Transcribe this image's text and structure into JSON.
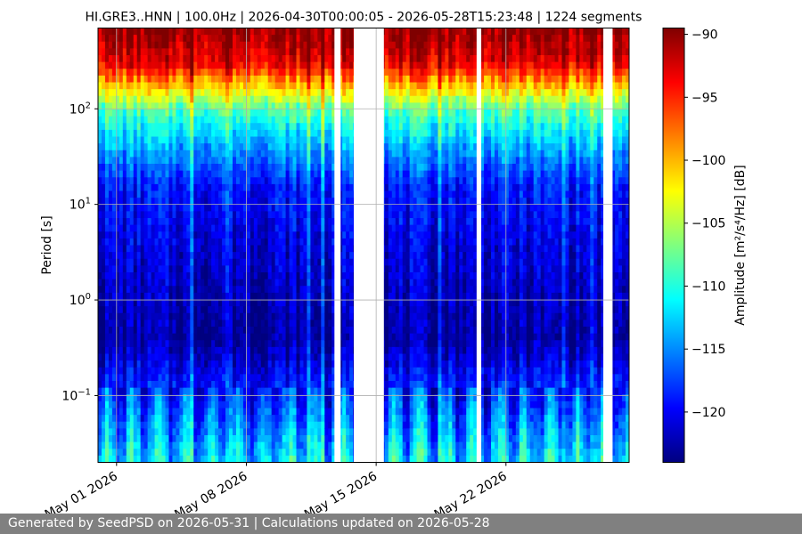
{
  "footer": {
    "text": "Generated by SeedPSD on 2026-05-31 | Calculations updated on 2026-05-28"
  },
  "chart_data": {
    "type": "heatmap",
    "title": "HI.GRE3..HNN | 100.0Hz | 2026-04-30T00:00:05 - 2026-05-28T15:23:48 | 1224 segments",
    "xlabel": "",
    "ylabel": "Period [s]",
    "colorbar_label": "Amplitude [m²/s⁴/Hz] [dB]",
    "x_range": [
      "2026-04-30T00:00:05",
      "2026-05-28T15:23:48"
    ],
    "x_ticks": [
      {
        "date": "2026-05-01",
        "label": "May 01 2026"
      },
      {
        "date": "2026-05-08",
        "label": "May 08 2026"
      },
      {
        "date": "2026-05-15",
        "label": "May 15 2026"
      },
      {
        "date": "2026-05-22",
        "label": "May 22 2026"
      }
    ],
    "y_scale": "log",
    "y_inverted": true,
    "y_range": [
      0.02,
      700
    ],
    "y_ticks": [
      {
        "value": 0.1,
        "base": "10",
        "exp": "−1"
      },
      {
        "value": 1,
        "base": "10",
        "exp": "0"
      },
      {
        "value": 10,
        "base": "10",
        "exp": "1"
      },
      {
        "value": 100,
        "base": "10",
        "exp": "2"
      }
    ],
    "color_range": [
      -124,
      -89.5
    ],
    "colorbar_ticks": [
      -90,
      -95,
      -100,
      -105,
      -110,
      -115,
      -120
    ],
    "colorbar_tick_labels": [
      "−90",
      "−95",
      "−100",
      "−105",
      "−110",
      "−115",
      "−120"
    ],
    "colormap": [
      "#00007f",
      "#0000ff",
      "#007fff",
      "#00ffff",
      "#7fff7f",
      "#ffff00",
      "#ff7f00",
      "#ff0000",
      "#7f0000"
    ],
    "grid": true,
    "amplitude_profile": [
      {
        "period": 0.02,
        "db": -112
      },
      {
        "period": 0.1,
        "db": -118
      },
      {
        "period": 0.4,
        "db": -123
      },
      {
        "period": 3,
        "db": -121
      },
      {
        "period": 15,
        "db": -119
      },
      {
        "period": 40,
        "db": -114
      },
      {
        "period": 100,
        "db": -108
      },
      {
        "period": 180,
        "db": -100
      },
      {
        "period": 300,
        "db": -93
      },
      {
        "period": 700,
        "db": -90
      }
    ],
    "data_gaps": [
      {
        "start": "2026-05-12T18:00:00",
        "end": "2026-05-13T02:00:00"
      },
      {
        "start": "2026-05-13T19:00:00",
        "end": "2026-05-15T10:00:00"
      },
      {
        "start": "2026-05-20T10:00:00",
        "end": "2026-05-20T16:00:00"
      },
      {
        "start": "2026-05-27T06:00:00",
        "end": "2026-05-27T18:00:00"
      }
    ]
  }
}
